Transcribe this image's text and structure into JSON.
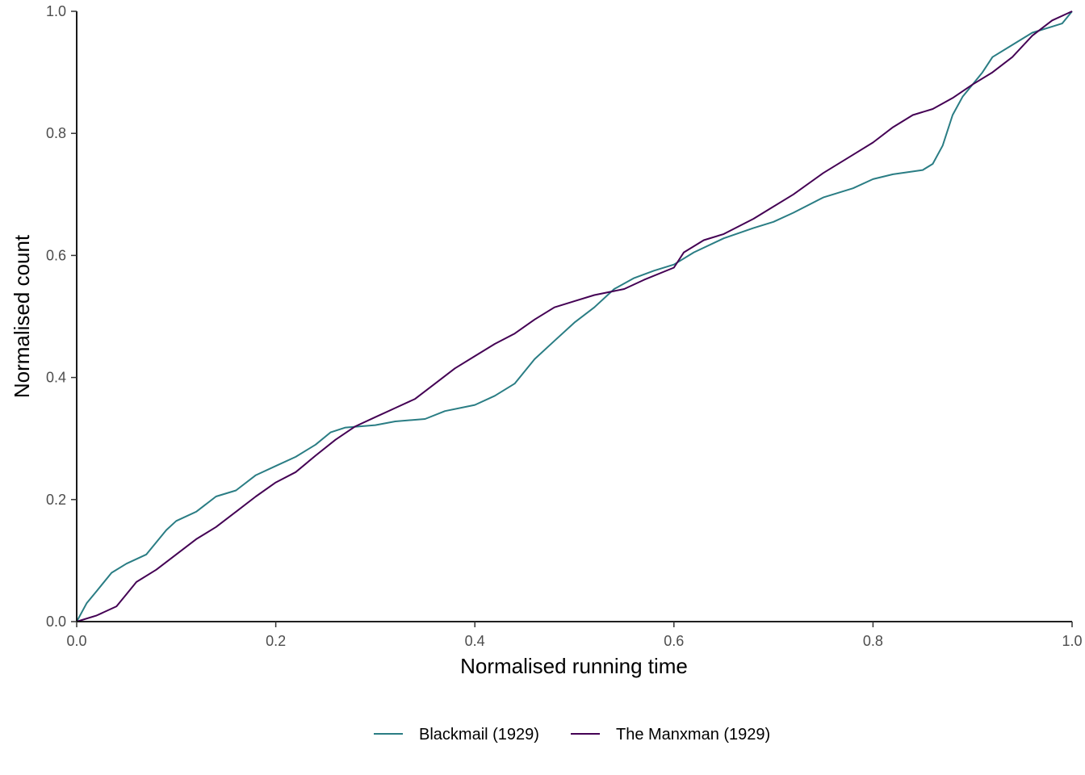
{
  "chart_data": {
    "type": "line",
    "xlabel": "Normalised running time",
    "ylabel": "Normalised count",
    "xlim": [
      0,
      1
    ],
    "ylim": [
      0,
      1
    ],
    "x_ticks": [
      "0.0",
      "0.2",
      "0.4",
      "0.6",
      "0.8",
      "1.0"
    ],
    "y_ticks": [
      "0.0",
      "0.2",
      "0.4",
      "0.6",
      "0.8",
      "1.0"
    ],
    "grid": false,
    "legend_position": "bottom",
    "series": [
      {
        "name": "Blackmail (1929)",
        "color": "#2a7d84",
        "points": [
          [
            0,
            0
          ],
          [
            0.01,
            0.03
          ],
          [
            0.02,
            0.05
          ],
          [
            0.035,
            0.08
          ],
          [
            0.05,
            0.095
          ],
          [
            0.07,
            0.11
          ],
          [
            0.08,
            0.13
          ],
          [
            0.09,
            0.15
          ],
          [
            0.1,
            0.165
          ],
          [
            0.12,
            0.18
          ],
          [
            0.14,
            0.205
          ],
          [
            0.16,
            0.215
          ],
          [
            0.18,
            0.24
          ],
          [
            0.2,
            0.255
          ],
          [
            0.22,
            0.27
          ],
          [
            0.24,
            0.29
          ],
          [
            0.255,
            0.31
          ],
          [
            0.27,
            0.318
          ],
          [
            0.3,
            0.322
          ],
          [
            0.32,
            0.328
          ],
          [
            0.35,
            0.332
          ],
          [
            0.37,
            0.345
          ],
          [
            0.4,
            0.355
          ],
          [
            0.42,
            0.37
          ],
          [
            0.44,
            0.39
          ],
          [
            0.46,
            0.43
          ],
          [
            0.48,
            0.46
          ],
          [
            0.5,
            0.49
          ],
          [
            0.52,
            0.515
          ],
          [
            0.54,
            0.545
          ],
          [
            0.56,
            0.563
          ],
          [
            0.58,
            0.575
          ],
          [
            0.6,
            0.585
          ],
          [
            0.62,
            0.605
          ],
          [
            0.65,
            0.628
          ],
          [
            0.68,
            0.645
          ],
          [
            0.7,
            0.655
          ],
          [
            0.72,
            0.67
          ],
          [
            0.75,
            0.695
          ],
          [
            0.78,
            0.71
          ],
          [
            0.8,
            0.725
          ],
          [
            0.82,
            0.733
          ],
          [
            0.85,
            0.74
          ],
          [
            0.86,
            0.75
          ],
          [
            0.87,
            0.78
          ],
          [
            0.88,
            0.83
          ],
          [
            0.89,
            0.86
          ],
          [
            0.9,
            0.88
          ],
          [
            0.91,
            0.9
          ],
          [
            0.92,
            0.925
          ],
          [
            0.94,
            0.945
          ],
          [
            0.96,
            0.965
          ],
          [
            0.98,
            0.975
          ],
          [
            0.99,
            0.98
          ],
          [
            1.0,
            1.0
          ]
        ]
      },
      {
        "name": "The Manxman (1929)",
        "color": "#440154",
        "points": [
          [
            0,
            0
          ],
          [
            0.02,
            0.01
          ],
          [
            0.04,
            0.025
          ],
          [
            0.05,
            0.045
          ],
          [
            0.06,
            0.065
          ],
          [
            0.08,
            0.085
          ],
          [
            0.1,
            0.11
          ],
          [
            0.12,
            0.135
          ],
          [
            0.14,
            0.155
          ],
          [
            0.16,
            0.18
          ],
          [
            0.18,
            0.205
          ],
          [
            0.2,
            0.228
          ],
          [
            0.22,
            0.245
          ],
          [
            0.24,
            0.272
          ],
          [
            0.26,
            0.298
          ],
          [
            0.28,
            0.32
          ],
          [
            0.3,
            0.335
          ],
          [
            0.32,
            0.35
          ],
          [
            0.34,
            0.365
          ],
          [
            0.36,
            0.39
          ],
          [
            0.38,
            0.415
          ],
          [
            0.4,
            0.435
          ],
          [
            0.42,
            0.455
          ],
          [
            0.44,
            0.472
          ],
          [
            0.46,
            0.495
          ],
          [
            0.48,
            0.515
          ],
          [
            0.5,
            0.525
          ],
          [
            0.52,
            0.535
          ],
          [
            0.55,
            0.545
          ],
          [
            0.57,
            0.56
          ],
          [
            0.6,
            0.58
          ],
          [
            0.61,
            0.605
          ],
          [
            0.63,
            0.625
          ],
          [
            0.65,
            0.635
          ],
          [
            0.68,
            0.66
          ],
          [
            0.7,
            0.68
          ],
          [
            0.72,
            0.7
          ],
          [
            0.75,
            0.735
          ],
          [
            0.78,
            0.765
          ],
          [
            0.8,
            0.785
          ],
          [
            0.82,
            0.81
          ],
          [
            0.84,
            0.83
          ],
          [
            0.86,
            0.84
          ],
          [
            0.88,
            0.858
          ],
          [
            0.9,
            0.88
          ],
          [
            0.92,
            0.9
          ],
          [
            0.94,
            0.925
          ],
          [
            0.96,
            0.96
          ],
          [
            0.98,
            0.985
          ],
          [
            1.0,
            1.0
          ]
        ]
      }
    ]
  }
}
